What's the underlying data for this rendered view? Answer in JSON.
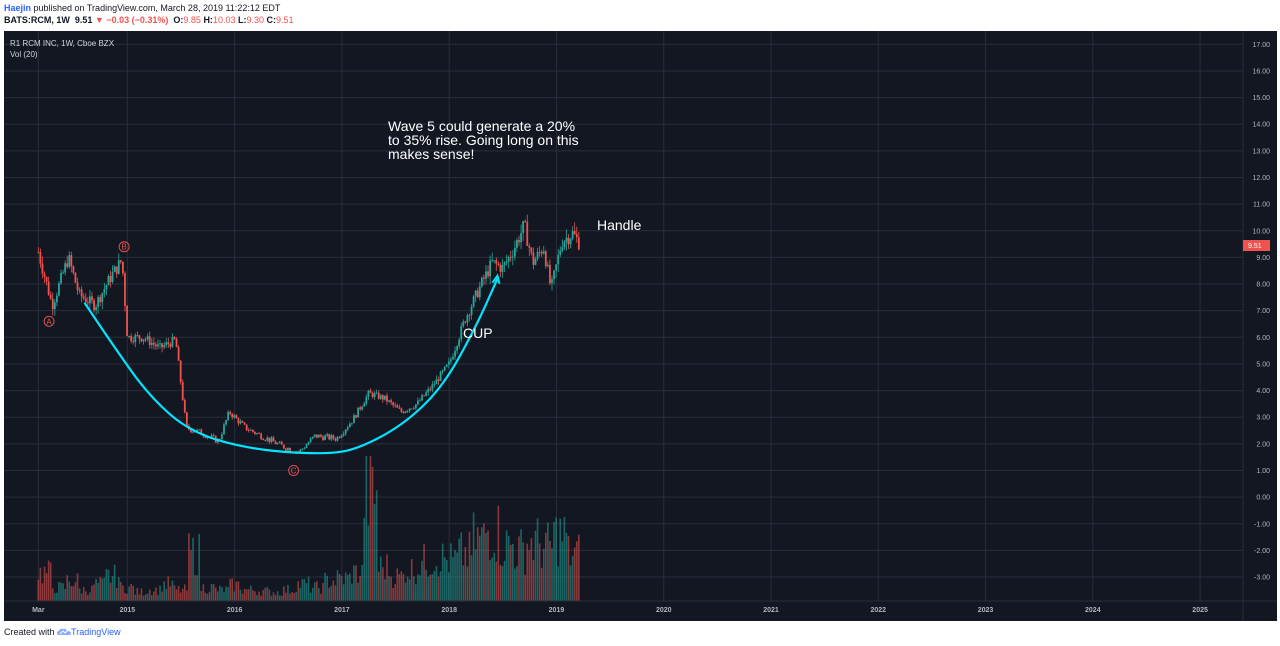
{
  "header": {
    "author": "Haejin",
    "published_text": " published on TradingView.com, March 28, 2019 11:22:12 EDT",
    "symbol": "BATS:RCM, 1W",
    "last": "9.51",
    "change_arrow": "▼",
    "change": "−0.03 (−0.31%)",
    "o_label": "O:",
    "o_val": "9.85",
    "h_label": "H:",
    "h_val": "10.03",
    "l_label": "L:",
    "l_val": "9.30",
    "c_label": "C:",
    "c_val": "9.51"
  },
  "footer": {
    "created_with": "Created with",
    "brand": "TradingView"
  },
  "legend": {
    "title": "R1 RCM INC, 1W, Cboe BZX",
    "volume": "Vol (20)"
  },
  "annotations": {
    "note_lines": [
      "Wave 5 could generate a 20%",
      "to 35% rise. Going long on this",
      "makes sense!"
    ],
    "handle": "Handle",
    "cup": "CUP",
    "wave_a": "A",
    "wave_b": "B",
    "wave_c": "C"
  },
  "colors": {
    "background": "#131722",
    "up": "#26a69a",
    "down": "#ef5350",
    "cup_line": "#00e5ff",
    "grid": "#2a2e39"
  },
  "chart_data": {
    "type": "candlestick",
    "title": "R1 RCM INC, 1W, Cboe BZX",
    "price_axis": {
      "ticks": [
        "17.00",
        "16.00",
        "15.00",
        "14.00",
        "13.00",
        "12.00",
        "11.00",
        "10.00",
        "9.00",
        "8.00",
        "7.00",
        "6.00",
        "5.00",
        "4.00",
        "3.00",
        "2.00",
        "1.00",
        "0.00",
        "-1.00",
        "-2.00",
        "-3.00"
      ],
      "ylim": [
        -3.9,
        17.5
      ],
      "last_price": "9.51"
    },
    "time_axis": {
      "ticks": [
        "Mar",
        "2015",
        "2016",
        "2017",
        "2018",
        "2019",
        "2020",
        "2021",
        "2022",
        "2023",
        "2024",
        "2025"
      ],
      "tick_years": [
        2014.17,
        2015.0,
        2016.0,
        2017.0,
        2018.0,
        2019.0,
        2020.0,
        2021.0,
        2022.0,
        2023.0,
        2024.0,
        2025.0
      ],
      "xlim": [
        2013.85,
        2025.4
      ]
    },
    "series": [
      {
        "name": "Price",
        "points": [
          [
            2014.17,
            9.2
          ],
          [
            2014.3,
            7.2
          ],
          [
            2014.45,
            9.0
          ],
          [
            2014.55,
            7.6
          ],
          [
            2014.7,
            7.2
          ],
          [
            2014.85,
            8.3
          ],
          [
            2014.95,
            8.9
          ],
          [
            2015.0,
            6.0
          ],
          [
            2015.15,
            6.0
          ],
          [
            2015.3,
            5.6
          ],
          [
            2015.45,
            5.9
          ],
          [
            2015.55,
            2.6
          ],
          [
            2015.7,
            2.4
          ],
          [
            2015.85,
            2.1
          ],
          [
            2015.95,
            3.2
          ],
          [
            2016.1,
            2.6
          ],
          [
            2016.3,
            2.2
          ],
          [
            2016.45,
            1.9
          ],
          [
            2016.6,
            1.7
          ],
          [
            2016.75,
            2.3
          ],
          [
            2016.95,
            2.2
          ],
          [
            2017.1,
            2.9
          ],
          [
            2017.25,
            3.9
          ],
          [
            2017.4,
            3.7
          ],
          [
            2017.55,
            3.2
          ],
          [
            2017.7,
            3.5
          ],
          [
            2017.85,
            4.2
          ],
          [
            2018.0,
            5.0
          ],
          [
            2018.15,
            6.7
          ],
          [
            2018.3,
            8.0
          ],
          [
            2018.4,
            8.8
          ],
          [
            2018.5,
            8.6
          ],
          [
            2018.6,
            9.3
          ],
          [
            2018.7,
            10.2
          ],
          [
            2018.78,
            8.8
          ],
          [
            2018.88,
            9.4
          ],
          [
            2018.95,
            7.8
          ],
          [
            2019.05,
            9.6
          ],
          [
            2019.15,
            9.9
          ],
          [
            2019.22,
            9.51
          ]
        ],
        "up_color": "#26a69a",
        "down_color": "#ef5350"
      },
      {
        "name": "Vol (20)",
        "relative_values": [
          0.25,
          0.12,
          0.18,
          0.1,
          0.15,
          0.22,
          0.12,
          0.08,
          0.1,
          0.15,
          0.1,
          0.42,
          0.12,
          0.1,
          0.14,
          0.1,
          0.09,
          0.08,
          0.1,
          0.15,
          0.12,
          0.18,
          0.2,
          0.25,
          0.95,
          0.3,
          0.22,
          0.28,
          0.35,
          0.38,
          0.36,
          0.42,
          0.55,
          0.62,
          0.5,
          0.45,
          0.52,
          0.48,
          0.58,
          0.42
        ]
      }
    ],
    "waves": [
      {
        "label": "A",
        "year": 2014.27,
        "price": 6.6
      },
      {
        "label": "B",
        "year": 2014.97,
        "price": 9.4
      },
      {
        "label": "C",
        "year": 2016.55,
        "price": 1.0
      }
    ],
    "cup_path": [
      [
        2014.6,
        7.3
      ],
      [
        2014.85,
        5.8
      ],
      [
        2015.2,
        3.8
      ],
      [
        2015.6,
        2.4
      ],
      [
        2016.2,
        1.75
      ],
      [
        2016.9,
        1.6
      ],
      [
        2017.2,
        1.9
      ],
      [
        2017.6,
        2.8
      ],
      [
        2017.95,
        4.2
      ],
      [
        2018.25,
        6.4
      ],
      [
        2018.45,
        8.2
      ]
    ],
    "grid": true
  }
}
